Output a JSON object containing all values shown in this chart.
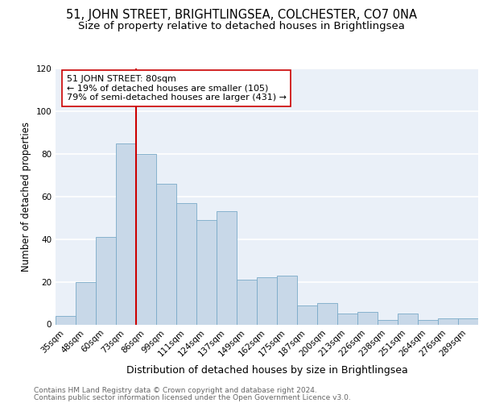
{
  "title1": "51, JOHN STREET, BRIGHTLINGSEA, COLCHESTER, CO7 0NA",
  "title2": "Size of property relative to detached houses in Brightlingsea",
  "xlabel": "Distribution of detached houses by size in Brightlingsea",
  "ylabel": "Number of detached properties",
  "footnote1": "Contains HM Land Registry data © Crown copyright and database right 2024.",
  "footnote2": "Contains public sector information licensed under the Open Government Licence v3.0.",
  "categories": [
    "35sqm",
    "48sqm",
    "60sqm",
    "73sqm",
    "86sqm",
    "99sqm",
    "111sqm",
    "124sqm",
    "137sqm",
    "149sqm",
    "162sqm",
    "175sqm",
    "187sqm",
    "200sqm",
    "213sqm",
    "226sqm",
    "238sqm",
    "251sqm",
    "264sqm",
    "276sqm",
    "289sqm"
  ],
  "values": [
    4,
    20,
    41,
    85,
    80,
    66,
    57,
    49,
    53,
    21,
    22,
    23,
    9,
    10,
    5,
    6,
    2,
    5,
    2,
    3,
    3
  ],
  "bar_color": "#c8d8e8",
  "bar_edge_color": "#7aaac8",
  "vline_x": 3.5,
  "vline_color": "#cc0000",
  "annotation_text": "51 JOHN STREET: 80sqm\n← 19% of detached houses are smaller (105)\n79% of semi-detached houses are larger (431) →",
  "annotation_box_color": "#ffffff",
  "annotation_box_edge": "#cc0000",
  "ylim": [
    0,
    120
  ],
  "yticks": [
    0,
    20,
    40,
    60,
    80,
    100,
    120
  ],
  "background_color": "#eaf0f8",
  "grid_color": "#ffffff",
  "title1_fontsize": 10.5,
  "title2_fontsize": 9.5,
  "xlabel_fontsize": 9,
  "ylabel_fontsize": 8.5,
  "tick_fontsize": 7.5,
  "annotation_fontsize": 8,
  "footnote_fontsize": 6.5
}
